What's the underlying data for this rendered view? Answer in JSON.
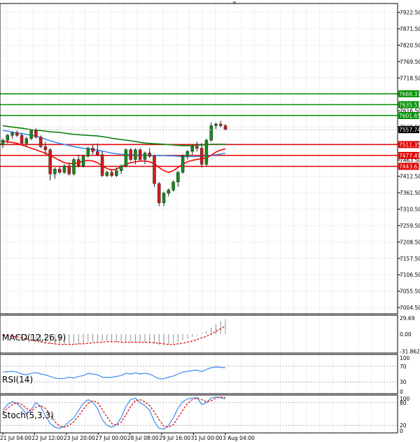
{
  "chart_data": {
    "type": "candlestick",
    "colors": {
      "bull": "#1a8a1a",
      "bear": "#d21a1a",
      "ma_fast": "#ff0000",
      "ma_mid": "#3c8cf0",
      "ma_slow": "#108010",
      "support_line": "#e00000",
      "resistance_line": "#009000",
      "grid": "#e2e2e2",
      "axis": "#000000",
      "macd_signal": "#e00000",
      "rsi": "#3c8cf0",
      "stoch_main": "#3c8cf0",
      "stoch_signal": "#e00000"
    },
    "main": {
      "ylim": [
        6985,
        7950
      ],
      "yticks": [
        "7922.50",
        "7871.50",
        "7820.50",
        "7769.50",
        "7718.50",
        "7667.50",
        "7616.50",
        "7565.50",
        "7514.50",
        "7463.50",
        "7412.50",
        "7361.50",
        "7310.50",
        "7259.50",
        "7208.50",
        "7157.50",
        "7106.50",
        "7055.50",
        "7004.50"
      ],
      "price_lines": [
        {
          "value": 7669.37,
          "label": "7669.37",
          "kind": "resistance"
        },
        {
          "value": 7635.51,
          "label": "7635.51",
          "kind": "resistance"
        },
        {
          "value": 7601.65,
          "label": "7601.65",
          "kind": "resistance"
        },
        {
          "value": 7511.35,
          "label": "7511.35",
          "kind": "support"
        },
        {
          "value": 7477.49,
          "label": "7477.49",
          "kind": "support"
        },
        {
          "value": 7443.63,
          "label": "7443.63",
          "kind": "support"
        }
      ],
      "current_price": {
        "value": 7557.74,
        "label": "7557.74"
      },
      "candles": [
        [
          7510,
          7530,
          7500,
          7525
        ],
        [
          7525,
          7545,
          7515,
          7540
        ],
        [
          7540,
          7552,
          7530,
          7548
        ],
        [
          7548,
          7555,
          7535,
          7540
        ],
        [
          7540,
          7548,
          7510,
          7515
        ],
        [
          7515,
          7535,
          7505,
          7530
        ],
        [
          7530,
          7560,
          7525,
          7555
        ],
        [
          7555,
          7562,
          7530,
          7535
        ],
        [
          7535,
          7540,
          7500,
          7505
        ],
        [
          7505,
          7520,
          7480,
          7495
        ],
        [
          7495,
          7500,
          7400,
          7420
        ],
        [
          7420,
          7440,
          7405,
          7435
        ],
        [
          7435,
          7445,
          7420,
          7425
        ],
        [
          7425,
          7450,
          7420,
          7445
        ],
        [
          7445,
          7455,
          7415,
          7420
        ],
        [
          7420,
          7470,
          7415,
          7465
        ],
        [
          7465,
          7480,
          7440,
          7445
        ],
        [
          7445,
          7480,
          7440,
          7475
        ],
        [
          7475,
          7505,
          7470,
          7500
        ],
        [
          7500,
          7510,
          7480,
          7490
        ],
        [
          7490,
          7515,
          7475,
          7480
        ],
        [
          7480,
          7490,
          7410,
          7415
        ],
        [
          7415,
          7430,
          7410,
          7425
        ],
        [
          7425,
          7435,
          7410,
          7415
        ],
        [
          7415,
          7440,
          7410,
          7430
        ],
        [
          7430,
          7450,
          7420,
          7445
        ],
        [
          7445,
          7500,
          7440,
          7495
        ],
        [
          7495,
          7500,
          7460,
          7465
        ],
        [
          7465,
          7500,
          7450,
          7495
        ],
        [
          7495,
          7500,
          7460,
          7465
        ],
        [
          7465,
          7490,
          7450,
          7485
        ],
        [
          7485,
          7500,
          7470,
          7475
        ],
        [
          7475,
          7480,
          7380,
          7390
        ],
        [
          7390,
          7395,
          7320,
          7330
        ],
        [
          7330,
          7365,
          7320,
          7360
        ],
        [
          7360,
          7375,
          7350,
          7370
        ],
        [
          7370,
          7400,
          7365,
          7395
        ],
        [
          7395,
          7430,
          7380,
          7425
        ],
        [
          7425,
          7480,
          7420,
          7475
        ],
        [
          7475,
          7495,
          7465,
          7490
        ],
        [
          7490,
          7510,
          7480,
          7505
        ],
        [
          7505,
          7520,
          7490,
          7500
        ],
        [
          7500,
          7515,
          7440,
          7450
        ],
        [
          7450,
          7530,
          7445,
          7525
        ],
        [
          7525,
          7580,
          7520,
          7570
        ],
        [
          7570,
          7580,
          7560,
          7575
        ],
        [
          7575,
          7585,
          7565,
          7570
        ],
        [
          7570,
          7575,
          7555,
          7558
        ]
      ],
      "ma_fast": [
        7522,
        7520,
        7518,
        7515,
        7510,
        7505,
        7500,
        7495,
        7490,
        7484,
        7478,
        7470,
        7462,
        7455,
        7452,
        7452,
        7455,
        7460,
        7462,
        7460,
        7455,
        7445,
        7437,
        7432,
        7435,
        7442,
        7450,
        7455,
        7458,
        7460,
        7460,
        7458,
        7452,
        7440,
        7430,
        7425,
        7430,
        7440,
        7450,
        7458,
        7462,
        7465,
        7467,
        7470,
        7478,
        7488,
        7494,
        7498
      ],
      "ma_mid": [
        7555,
        7553,
        7550,
        7547,
        7545,
        7543,
        7540,
        7537,
        7533,
        7528,
        7523,
        7519,
        7515,
        7512,
        7508,
        7505,
        7502,
        7500,
        7498,
        7496,
        7494,
        7491,
        7488,
        7485,
        7483,
        7481,
        7480,
        7479,
        7479,
        7478,
        7478,
        7477,
        7477,
        7477,
        7477,
        7476,
        7476,
        7475,
        7474,
        7474,
        7474,
        7474,
        7475,
        7476,
        7478,
        7480,
        7482,
        7484
      ],
      "ma_slow": [
        7570,
        7568,
        7566,
        7564,
        7562,
        7560,
        7558,
        7556,
        7555,
        7553,
        7551,
        7550,
        7549,
        7547,
        7545,
        7543,
        7542,
        7541,
        7540,
        7539,
        7538,
        7536,
        7534,
        7531,
        7529,
        7527,
        7525,
        7523,
        7521,
        7518,
        7516,
        7515,
        7514,
        7513,
        7512,
        7511,
        7510,
        7509,
        7508,
        7508,
        7508,
        7509,
        7510,
        7511,
        7512,
        7512,
        7512,
        7512
      ]
    },
    "x_labels": [
      "21 Jul 04:00",
      "22 Jul 12:00",
      "23 Jul 20:00",
      "27 Jul 00:00",
      "28 Jul 08:00",
      "29 Jul 16:00",
      "31 Jul 00:00",
      "3 Aug 04:00"
    ],
    "macd": {
      "label": "MACD(12,26,9)",
      "yticks": [
        "29.69",
        "0.00",
        "-31.862"
      ],
      "ylim": [
        -35,
        35
      ],
      "histogram": [
        -3,
        -4,
        -5,
        -6,
        -8,
        -10,
        -12,
        -14,
        -16,
        -17,
        -18,
        -19,
        -20,
        -20,
        -20,
        -19,
        -18,
        -17,
        -15,
        -14,
        -13,
        -13,
        -13,
        -14,
        -15,
        -15,
        -15,
        -14,
        -14,
        -14,
        -15,
        -16,
        -18,
        -20,
        -20,
        -19,
        -17,
        -14,
        -11,
        -8,
        -5,
        -2,
        2,
        6,
        12,
        18,
        24,
        28
      ],
      "signal": [
        -2,
        -3,
        -4,
        -5,
        -7,
        -9,
        -11,
        -13,
        -14,
        -16,
        -17,
        -18,
        -19,
        -19,
        -19,
        -19,
        -18,
        -18,
        -17,
        -16,
        -15,
        -15,
        -14,
        -14,
        -14,
        -15,
        -15,
        -15,
        -15,
        -15,
        -15,
        -15,
        -16,
        -17,
        -18,
        -19,
        -19,
        -18,
        -17,
        -15,
        -13,
        -10,
        -7,
        -4,
        0,
        5,
        10,
        15
      ]
    },
    "rsi": {
      "label": "RSI(14)",
      "yticks": [
        "100",
        "70",
        "30",
        "0"
      ],
      "ylim": [
        0,
        100
      ],
      "values": [
        55,
        56,
        57,
        55,
        50,
        48,
        52,
        54,
        50,
        48,
        44,
        40,
        38,
        39,
        42,
        40,
        44,
        46,
        52,
        50,
        48,
        42,
        41,
        42,
        44,
        46,
        52,
        50,
        53,
        50,
        52,
        50,
        44,
        38,
        38,
        42,
        45,
        50,
        55,
        57,
        59,
        60,
        56,
        62,
        66,
        68,
        67,
        66
      ]
    },
    "stoch": {
      "label": "Stoch(5,3,3)",
      "yticks": [
        "100",
        "80",
        "20",
        "0"
      ],
      "ylim": [
        0,
        100
      ],
      "main": [
        60,
        75,
        82,
        78,
        65,
        50,
        62,
        80,
        70,
        45,
        25,
        15,
        12,
        18,
        30,
        40,
        60,
        78,
        88,
        80,
        65,
        35,
        20,
        15,
        22,
        40,
        70,
        88,
        92,
        80,
        72,
        60,
        30,
        12,
        10,
        20,
        40,
        65,
        82,
        90,
        92,
        93,
        75,
        80,
        92,
        95,
        93,
        90
      ],
      "signal": [
        55,
        65,
        75,
        80,
        75,
        65,
        58,
        68,
        72,
        65,
        48,
        30,
        18,
        15,
        20,
        30,
        45,
        62,
        78,
        85,
        80,
        62,
        42,
        25,
        20,
        28,
        48,
        70,
        85,
        88,
        82,
        72,
        55,
        35,
        18,
        15,
        22,
        40,
        60,
        78,
        88,
        92,
        88,
        82,
        85,
        92,
        95,
        93
      ]
    }
  }
}
